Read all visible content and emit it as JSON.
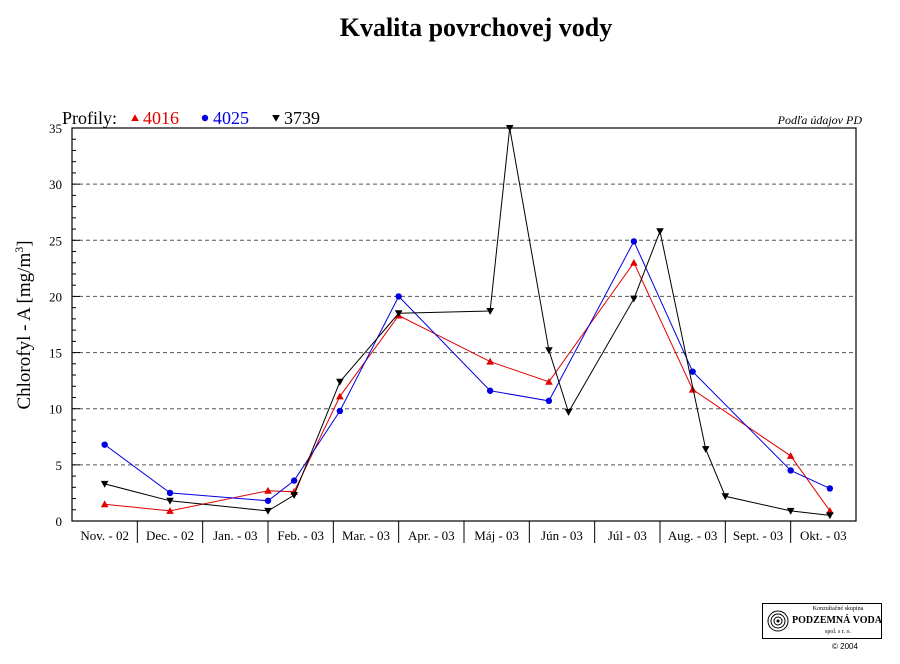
{
  "chart_data": {
    "type": "line",
    "title": "Kvalita povrchovej vody",
    "source_note": "Podľa údajov PD",
    "ylabel_main": "Chlorofyl - A [mg/m",
    "ylabel_sup": "3",
    "ylabel_end": "]",
    "legend_prefix": "Profily:",
    "legend_position": "top-left",
    "ylim": [
      0,
      35
    ],
    "yticks": [
      0,
      5,
      10,
      15,
      20,
      25,
      30,
      35
    ],
    "grid": "horizontal dashed",
    "x_range": [
      0,
      12
    ],
    "categories": [
      "Nov. - 02",
      "Dec. - 02",
      "Jan. - 03",
      "Feb. - 03",
      "Mar. - 03",
      "Apr. - 03",
      "Máj - 03",
      "Jún - 03",
      "Júl - 03",
      "Aug. - 03",
      "Sept. - 03",
      "Okt. - 03"
    ],
    "series": [
      {
        "name": "4016",
        "color": "#e00000",
        "marker": "triangle-up",
        "points": [
          [
            0.5,
            1.5
          ],
          [
            1.5,
            0.9
          ],
          [
            3.0,
            2.7
          ],
          [
            3.4,
            2.6
          ],
          [
            4.1,
            11.1
          ],
          [
            5.0,
            18.3
          ],
          [
            6.4,
            14.2
          ],
          [
            7.3,
            12.4
          ],
          [
            8.6,
            23.0
          ],
          [
            9.5,
            11.7
          ],
          [
            11.0,
            5.8
          ],
          [
            11.6,
            0.9
          ]
        ]
      },
      {
        "name": "4025",
        "color": "#0000e0",
        "marker": "circle",
        "points": [
          [
            0.5,
            6.8
          ],
          [
            1.5,
            2.5
          ],
          [
            3.0,
            1.8
          ],
          [
            3.4,
            3.6
          ],
          [
            4.1,
            9.8
          ],
          [
            5.0,
            20.0
          ],
          [
            6.4,
            11.6
          ],
          [
            7.3,
            10.7
          ],
          [
            8.6,
            24.9
          ],
          [
            9.5,
            13.3
          ],
          [
            11.0,
            4.5
          ],
          [
            11.6,
            2.9
          ]
        ]
      },
      {
        "name": "3739",
        "color": "#000000",
        "marker": "triangle-down",
        "points": [
          [
            0.5,
            3.3
          ],
          [
            1.5,
            1.8
          ],
          [
            3.0,
            0.9
          ],
          [
            3.4,
            2.3
          ],
          [
            4.1,
            12.4
          ],
          [
            5.0,
            18.5
          ],
          [
            6.4,
            18.7
          ],
          [
            6.7,
            35.0
          ],
          [
            7.3,
            15.2
          ],
          [
            7.6,
            9.7
          ],
          [
            8.6,
            19.8
          ],
          [
            9.0,
            25.8
          ],
          [
            9.7,
            6.4
          ],
          [
            10.0,
            2.2
          ],
          [
            11.0,
            0.9
          ],
          [
            11.6,
            0.5
          ]
        ]
      }
    ]
  },
  "logo": {
    "line1": "Konzultačné skupina",
    "line2": "PODZEMNÁ VODA",
    "line3": "spol. s r. o."
  },
  "copyright": "© 2004"
}
